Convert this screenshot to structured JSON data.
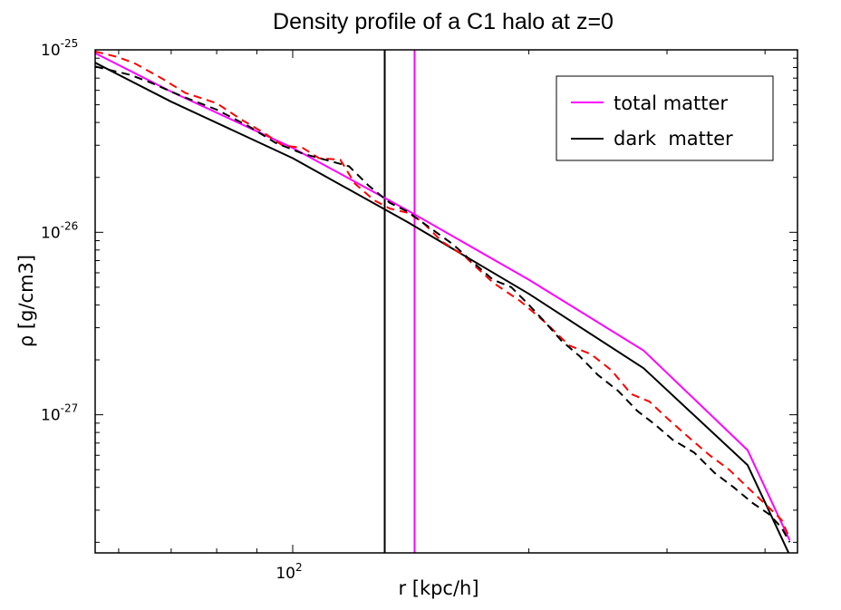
{
  "chart_data": {
    "type": "line",
    "title": "Density profile of a C1 halo at z=0",
    "xlabel": "r [kpc/h]",
    "ylabel": "ρ [g/cm3]",
    "x_scale": "log",
    "y_scale": "log",
    "xlim": [
      56,
      440
    ],
    "ylim": [
      1.75e-28,
      1e-25
    ],
    "x_ticks": [
      {
        "value": 100,
        "label_base": "10",
        "label_exp": "2"
      }
    ],
    "y_ticks": [
      {
        "value": 1e-25,
        "label_base": "10",
        "label_exp": "-25"
      },
      {
        "value": 1e-26,
        "label_base": "10",
        "label_exp": "-26"
      },
      {
        "value": 1e-27,
        "label_base": "10",
        "label_exp": "-27"
      }
    ],
    "grid": false,
    "legend_position": "top-right",
    "legend": [
      {
        "label": "total matter",
        "color": "#ff00ff"
      },
      {
        "label": "dark  matter",
        "color": "#000000"
      }
    ],
    "series": [
      {
        "name": "total matter",
        "style": "solid",
        "color": "#ff00ff",
        "x": [
          56,
          70,
          100,
          140,
          200,
          280,
          380,
          430
        ],
        "y": [
          9.6e-26,
          5.9e-26,
          2.9e-26,
          1.32e-26,
          5.5e-27,
          2.25e-27,
          6.4e-28,
          2.05e-28
        ]
      },
      {
        "x": [
          56,
          70,
          100,
          140,
          200,
          280,
          380,
          430
        ],
        "y": [
          8.5e-26,
          5.2e-26,
          2.55e-26,
          1.14e-26,
          4.6e-27,
          1.8e-27,
          5.3e-28,
          1.7e-28
        ],
        "style": "solid",
        "color": "#000000",
        "name": "dark  matter"
      },
      {
        "style": "dashed",
        "color": "#ff0000",
        "x": [
          56,
          60,
          63,
          68,
          73,
          80,
          86,
          92,
          97,
          103,
          108,
          115,
          120,
          127,
          133,
          140,
          146,
          155,
          165,
          180,
          195,
          210,
          225,
          240,
          255,
          270,
          285,
          300,
          320,
          340,
          360,
          380,
          400,
          420,
          430
        ],
        "y": [
          9.8e-26,
          9.1e-26,
          8.4e-26,
          7e-26,
          5.8e-26,
          5.1e-26,
          4.15e-26,
          3.5e-26,
          3e-26,
          2.9e-26,
          2.55e-26,
          2.5e-26,
          1.85e-26,
          1.5e-26,
          1.35e-26,
          1.28e-26,
          1.15e-26,
          8.9e-27,
          7.5e-27,
          5.3e-27,
          4.2e-27,
          3.2e-27,
          2.4e-27,
          2.15e-27,
          1.75e-27,
          1.3e-27,
          1.18e-27,
          9.6e-28,
          7.5e-28,
          6e-28,
          5e-28,
          4e-28,
          3.25e-28,
          2.65e-28,
          2.1e-28
        ]
      },
      {
        "color": "#000000",
        "style": "dashed",
        "x": [
          56,
          62,
          66,
          72,
          80,
          88,
          95,
          103,
          110,
          118,
          125,
          133,
          140,
          150,
          160,
          170,
          180,
          190,
          200,
          210,
          220,
          232,
          245,
          260,
          275,
          290,
          305,
          325,
          345,
          365,
          385,
          405,
          420,
          430
        ],
        "y": [
          8.1e-26,
          7.3e-26,
          6.6e-26,
          5.6e-26,
          4.7e-26,
          3.8e-26,
          3.1e-26,
          2.7e-26,
          2.5e-26,
          2.3e-26,
          1.8e-26,
          1.45e-26,
          1.3e-26,
          1.05e-26,
          8.6e-27,
          6.8e-27,
          5.5e-27,
          5e-27,
          4e-27,
          3.2e-27,
          2.55e-27,
          2.1e-27,
          1.65e-27,
          1.35e-27,
          1.05e-27,
          8.8e-28,
          7.3e-28,
          6.2e-28,
          4.8e-28,
          4e-28,
          3.3e-28,
          2.85e-28,
          2.4e-28,
          2e-28
        ]
      }
    ],
    "vertical_lines": [
      {
        "x": 131,
        "color": "#000000"
      },
      {
        "x": 143,
        "color": "#ff00ff"
      }
    ]
  }
}
